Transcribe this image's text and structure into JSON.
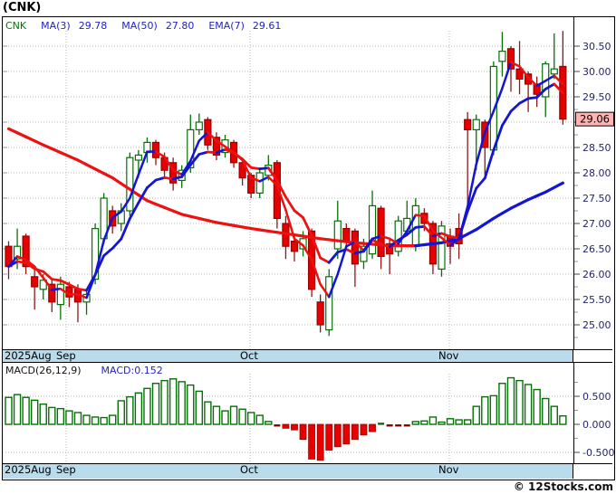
{
  "page": {
    "title": "(CNK)",
    "watermark": "© 12Stocks.com"
  },
  "legend": {
    "symbol": "CNK",
    "ma3_label": "MA(3)",
    "ma3_value": "29.78",
    "ma50_label": "MA(50)",
    "ma50_value": "27.80",
    "ema7_label": "EMA(7)",
    "ema7_value": "29.61"
  },
  "macd": {
    "label": "MACD(26,12,9)",
    "value_label": "MACD:0.152"
  },
  "price_tag": "29.06",
  "x_labels": [
    "2025Aug",
    "Sep",
    "Oct",
    "Nov"
  ],
  "colors": {
    "up": "#067006",
    "down_fill": "#e60000",
    "down_edge": "#990000",
    "down_wick": "#8b1a1a",
    "line_up": "#1414d4",
    "line_down": "#ee1111",
    "axis_text": "#24246a",
    "grid": "#b4b4b4",
    "tick": "#444",
    "minor_tick": "#999",
    "date_bar_bg": "#b9dcec",
    "tag_bg": "#ffb3b3",
    "legend_blue": "#2222cc",
    "legend_green": "#007700"
  },
  "chart_data": [
    {
      "type": "candlestick",
      "title": "(CNK)",
      "x_axis": {
        "period_labels": [
          "2025Aug",
          "Sep",
          "Oct",
          "Nov"
        ],
        "month_gridline_x": [
          70,
          273,
          493
        ]
      },
      "y_axis": {
        "min": 24.6,
        "max": 30.8,
        "tick_step": 0.5,
        "top_label_price": 30.5,
        "tick_labels": [
          "30.50",
          "30.00",
          "29.50",
          "29.00",
          "28.50",
          "28.00",
          "27.50",
          "27.00",
          "26.50",
          "26.00",
          "25.50",
          "25.00"
        ]
      },
      "last_price": 29.06,
      "overlays": {
        "ma3": 29.78,
        "ma50": 27.8,
        "ema7": 29.61
      },
      "candles": [
        [
          26.55,
          26.65,
          25.9,
          26.15
        ],
        [
          26.3,
          26.9,
          26.1,
          26.55
        ],
        [
          26.75,
          26.8,
          26.0,
          26.15
        ],
        [
          25.95,
          26.1,
          25.3,
          25.75
        ],
        [
          25.7,
          26.0,
          25.5,
          25.88
        ],
        [
          25.8,
          25.9,
          25.25,
          25.45
        ],
        [
          25.4,
          25.95,
          25.1,
          25.8
        ],
        [
          25.75,
          25.85,
          25.35,
          25.55
        ],
        [
          25.7,
          25.8,
          25.05,
          25.45
        ],
        [
          25.45,
          25.7,
          25.2,
          25.6
        ],
        [
          25.9,
          27.0,
          25.8,
          26.9
        ],
        [
          26.7,
          27.6,
          26.6,
          27.5
        ],
        [
          27.25,
          27.35,
          26.8,
          26.95
        ],
        [
          27.0,
          27.4,
          26.85,
          27.25
        ],
        [
          27.25,
          28.4,
          27.15,
          28.3
        ],
        [
          28.25,
          28.45,
          27.9,
          28.35
        ],
        [
          28.4,
          28.7,
          28.2,
          28.6
        ],
        [
          28.6,
          28.65,
          28.15,
          28.3
        ],
        [
          28.3,
          28.4,
          27.9,
          28.05
        ],
        [
          28.2,
          28.3,
          27.65,
          27.8
        ],
        [
          27.85,
          28.15,
          27.7,
          28.05
        ],
        [
          28.1,
          29.15,
          28.0,
          28.85
        ],
        [
          28.85,
          29.17,
          28.75,
          29.0
        ],
        [
          29.05,
          29.1,
          28.45,
          28.55
        ],
        [
          28.7,
          28.8,
          28.25,
          28.35
        ],
        [
          28.4,
          28.75,
          28.3,
          28.65
        ],
        [
          28.6,
          28.65,
          28.1,
          28.2
        ],
        [
          28.2,
          28.3,
          27.75,
          27.9
        ],
        [
          27.95,
          28.0,
          27.5,
          27.6
        ],
        [
          27.6,
          28.1,
          27.5,
          28.0
        ],
        [
          27.95,
          28.35,
          27.85,
          28.15
        ],
        [
          28.2,
          28.25,
          26.9,
          27.1
        ],
        [
          27.0,
          27.15,
          26.3,
          26.55
        ],
        [
          26.65,
          26.8,
          26.25,
          26.45
        ],
        [
          26.5,
          26.85,
          26.35,
          26.7
        ],
        [
          26.85,
          26.9,
          25.55,
          25.7
        ],
        [
          25.45,
          25.6,
          24.85,
          25.0
        ],
        [
          24.9,
          26.1,
          24.78,
          25.95
        ],
        [
          26.5,
          27.45,
          26.3,
          27.05
        ],
        [
          26.9,
          27.0,
          26.5,
          26.65
        ],
        [
          26.85,
          26.9,
          25.75,
          26.2
        ],
        [
          26.25,
          26.7,
          26.1,
          26.55
        ],
        [
          26.4,
          27.65,
          26.3,
          27.35
        ],
        [
          27.3,
          27.35,
          26.1,
          26.35
        ],
        [
          26.6,
          26.7,
          26.0,
          26.4
        ],
        [
          26.45,
          27.15,
          26.35,
          27.05
        ],
        [
          26.85,
          27.45,
          26.75,
          27.1
        ],
        [
          26.55,
          27.5,
          26.45,
          27.35
        ],
        [
          27.2,
          27.3,
          26.85,
          27.0
        ],
        [
          27.0,
          27.05,
          26.0,
          26.2
        ],
        [
          26.1,
          27.05,
          25.95,
          26.95
        ],
        [
          26.75,
          26.9,
          26.2,
          26.55
        ],
        [
          26.9,
          27.2,
          26.3,
          26.6
        ],
        [
          29.05,
          29.2,
          27.3,
          28.85
        ],
        [
          28.85,
          29.15,
          28.05,
          29.05
        ],
        [
          29.0,
          29.05,
          27.95,
          28.5
        ],
        [
          28.45,
          30.2,
          28.35,
          30.1
        ],
        [
          30.2,
          30.78,
          29.9,
          30.4
        ],
        [
          30.45,
          30.5,
          29.6,
          30.05
        ],
        [
          30.05,
          30.6,
          29.55,
          29.85
        ],
        [
          29.95,
          30.0,
          29.2,
          29.75
        ],
        [
          29.75,
          29.9,
          29.3,
          29.55
        ],
        [
          29.5,
          30.2,
          29.1,
          30.15
        ],
        [
          29.95,
          30.75,
          29.85,
          30.05
        ],
        [
          30.1,
          30.8,
          28.95,
          29.06
        ]
      ],
      "ma50_points": [
        [
          0,
          28.87
        ],
        [
          4,
          28.55
        ],
        [
          8,
          28.25
        ],
        [
          12,
          27.9
        ],
        [
          16,
          27.45
        ],
        [
          20,
          27.18
        ],
        [
          24,
          27.02
        ],
        [
          28,
          26.9
        ],
        [
          32,
          26.8
        ],
        [
          36,
          26.7
        ],
        [
          40,
          26.62
        ],
        [
          44,
          26.56
        ],
        [
          47,
          26.56
        ],
        [
          50,
          26.62
        ],
        [
          52,
          26.7
        ],
        [
          54,
          26.88
        ],
        [
          56,
          27.1
        ],
        [
          58,
          27.3
        ],
        [
          60,
          27.47
        ],
        [
          62,
          27.62
        ],
        [
          64,
          27.8
        ]
      ]
    },
    {
      "type": "bar",
      "name": "MACD(26,12,9)",
      "last_value": 0.152,
      "y_axis": {
        "tick_labels": [
          "0.500",
          "0.000",
          "-0.500"
        ],
        "tick_values": [
          0.5,
          0,
          -0.5
        ]
      },
      "values": [
        0.48,
        0.53,
        0.48,
        0.43,
        0.36,
        0.3,
        0.28,
        0.24,
        0.21,
        0.16,
        0.13,
        0.12,
        0.16,
        0.42,
        0.49,
        0.56,
        0.64,
        0.73,
        0.78,
        0.81,
        0.76,
        0.7,
        0.59,
        0.4,
        0.32,
        0.24,
        0.32,
        0.27,
        0.21,
        0.16,
        0.05,
        -0.02,
        -0.07,
        -0.1,
        -0.27,
        -0.62,
        -0.64,
        -0.46,
        -0.4,
        -0.35,
        -0.27,
        -0.19,
        -0.13,
        0.01,
        -0.02,
        -0.02,
        -0.02,
        0.05,
        0.06,
        0.13,
        0.04,
        0.1,
        0.08,
        0.08,
        0.32,
        0.49,
        0.51,
        0.73,
        0.83,
        0.78,
        0.71,
        0.62,
        0.46,
        0.32,
        0.15
      ]
    }
  ]
}
